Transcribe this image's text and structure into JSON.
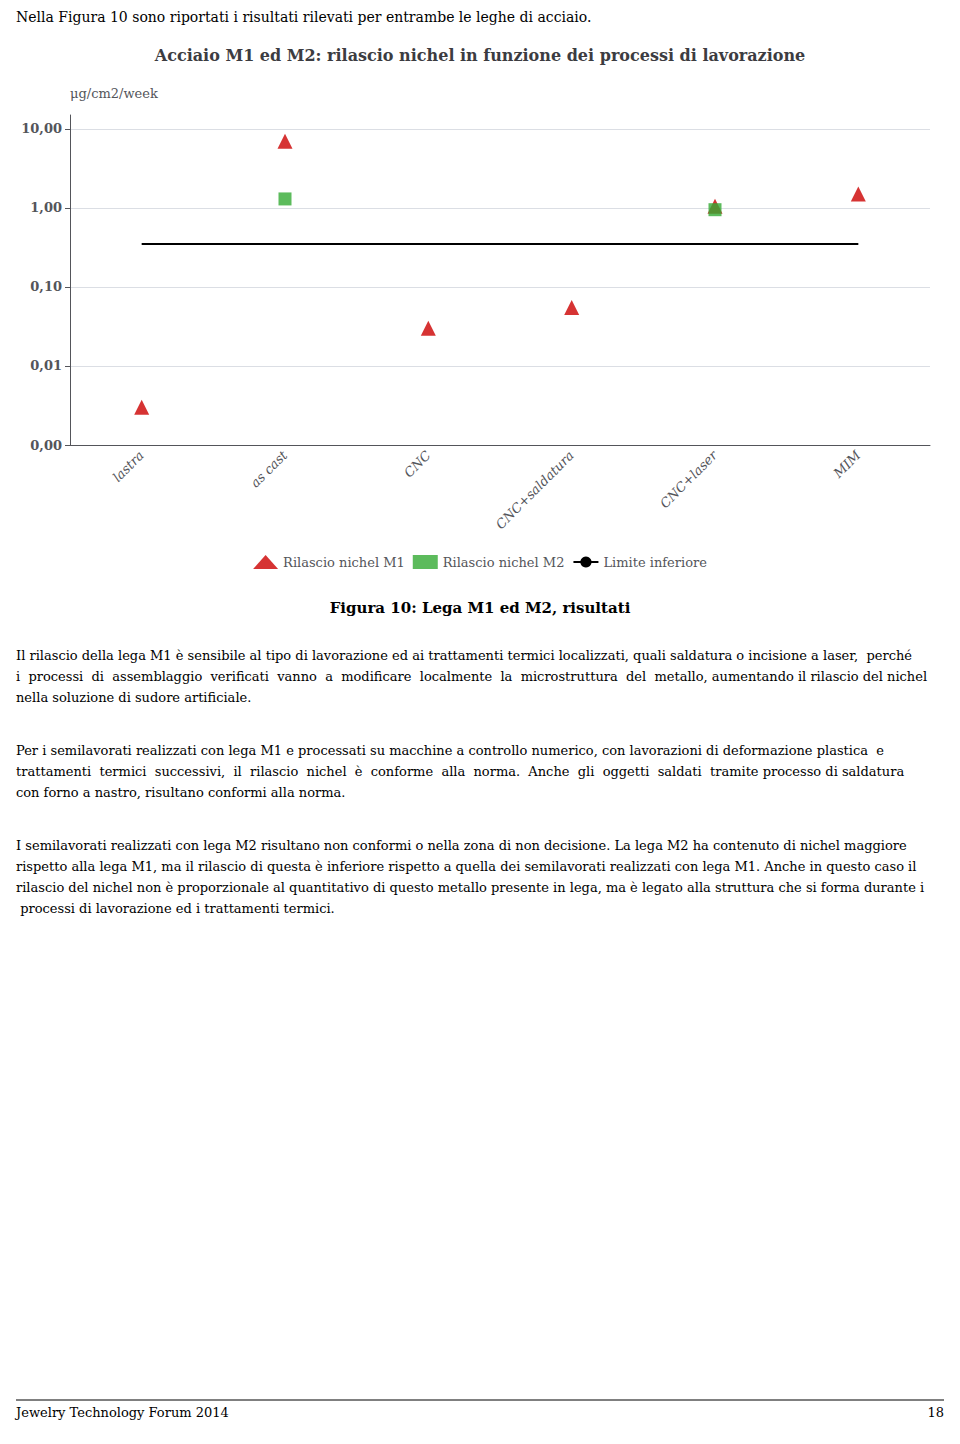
{
  "chart_data": {
    "type": "scatter",
    "title": "Acciaio M1 ed M2: rilascio nichel in funzione dei processi di lavorazione",
    "ylabel": "μg/cm2/week",
    "categories": [
      "lastra",
      "as cast",
      "CNC",
      "CNC+saldatura",
      "CNC+laser",
      "MIM"
    ],
    "series": [
      {
        "name": "Rilascio nichel M1",
        "color": "#cc0000",
        "marker": "triangle",
        "values": [
          0.003,
          7.0,
          0.03,
          0.055,
          1.05,
          1.5
        ]
      },
      {
        "name": "Rilascio nichel M2",
        "color": "#33aa33",
        "marker": "square",
        "values": [
          null,
          1.3,
          null,
          null,
          0.95,
          null
        ]
      },
      {
        "name": "Limite inferiore",
        "color": "#000000",
        "type": "line",
        "line_style": "solid",
        "values": [
          0.35,
          0.35,
          0.35,
          0.35,
          0.35,
          0.35
        ]
      }
    ],
    "log": "y",
    "ylim": [
      0.001,
      15.0
    ],
    "yticks": [
      {
        "value": 0.001,
        "label": "0,00"
      },
      {
        "value": 0.01,
        "label": "0,01"
      },
      {
        "value": 0.1,
        "label": "0,10"
      },
      {
        "value": 1.0,
        "label": "1,00"
      },
      {
        "value": 10.0,
        "label": "10,00"
      }
    ],
    "grid": true,
    "legend": "bottom",
    "annotations": [
      "Nella Figura 10 sono riportati i risultati rilevati per entrambe le leghe di acciaio.",
      "Figura 10: Lega M1 ed M2, risultati",
      "Il rilascio della lega M1 è sensibile al tipo di lavorazione ed ai trattamenti termici localizzati, quali saldatura o incisione a laser,  perché  i  processi  di  assemblaggio  verificati  vanno  a  modificare  localmente  la  microstruttura  del  metallo, aumentando il rilascio del nichel nella soluzione di sudore artificiale.",
      "Per i semilavorati realizzati con lega M1 e processati su macchine a controllo numerico, con lavorazioni di deformazione plastica  e  trattamenti  termici  successivi,  il  rilascio  nichel  è  conforme  alla  norma.  Anche  gli  oggetti  saldati  tramite processo di saldatura con forno a nastro, risultano conformi alla norma.",
      "I semilavorati realizzati con lega M2 risultano non conformi o nella zona di non decisione. La lega M2 ha contenuto di nichel maggiore rispetto alla lega M1, ma il rilascio di questa è inferiore rispetto a quella dei semilavorati realizzati con lega M1. Anche in questo caso il rilascio del nichel non è proporzionale al quantitativo di questo metallo presente in lega, ma è legato alla struttura che si forma durante i processi di lavorazione ed i trattamenti termici.",
      "Jewelry Technology Forum 2014",
      "18"
    ]
  }
}
